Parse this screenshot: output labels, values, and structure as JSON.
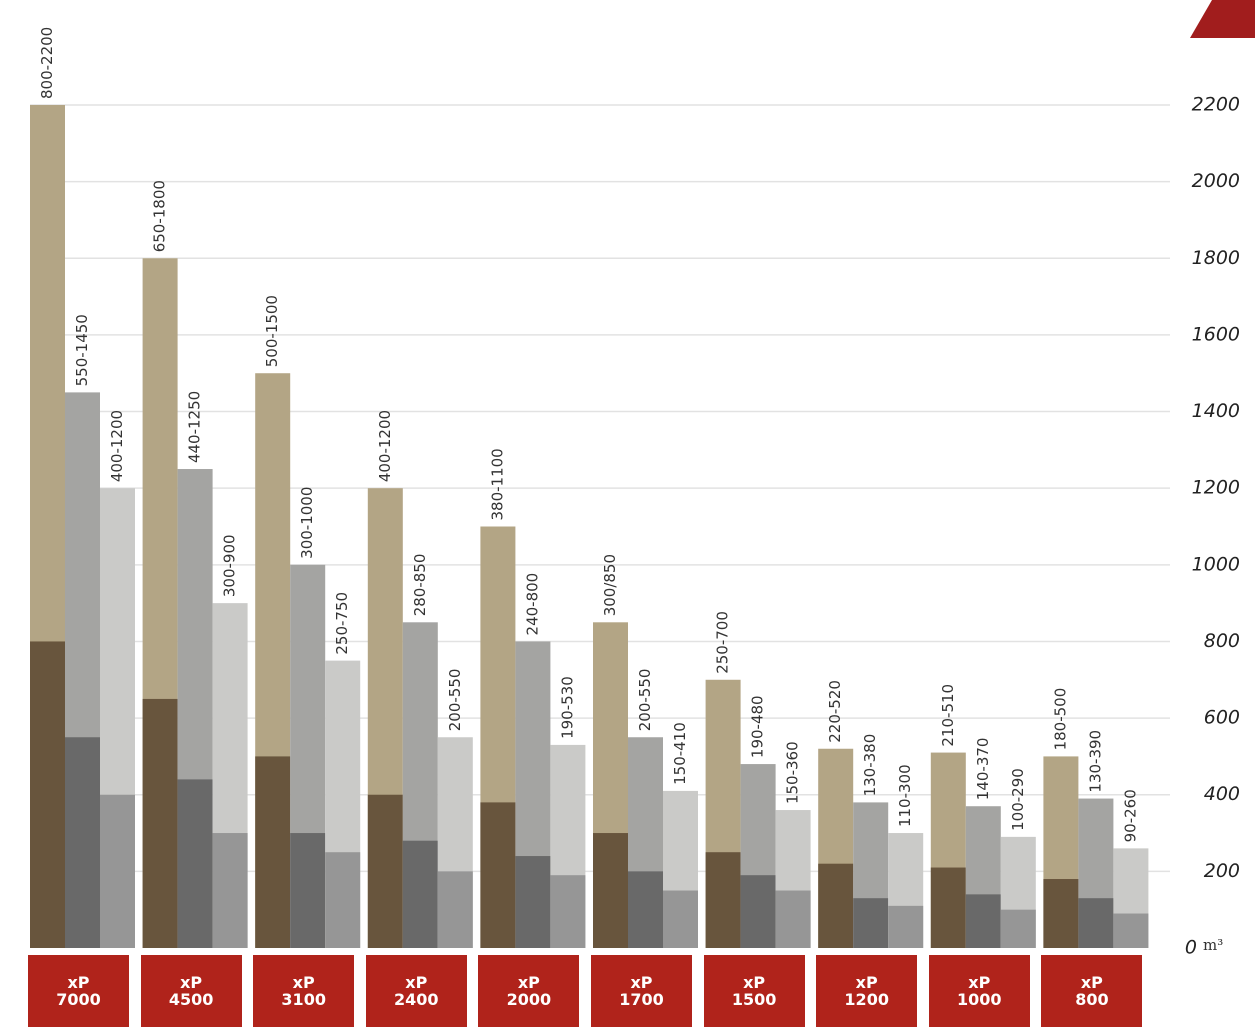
{
  "chart_data": {
    "type": "range_bar",
    "categories": [
      "xP 7000",
      "xP 4500",
      "xP 3100",
      "xP 2400",
      "xP 2000",
      "xP 1700",
      "xP 1500",
      "xP 1200",
      "xP 1000",
      "xP 800"
    ],
    "series": [
      {
        "color": "#b3a585",
        "low_color": "#5b4630",
        "values": [
          2200,
          1800,
          1500,
          1200,
          1100,
          850,
          700,
          520,
          510,
          500
        ],
        "lows": [
          800,
          650,
          500,
          400,
          380,
          300,
          250,
          220,
          210,
          180
        ],
        "value_labels": [
          "800-2200",
          "650-1800",
          "500-1500",
          "400-1200",
          "380-1100",
          "300/850",
          "250-700",
          "220-520",
          "210-510",
          "180-500"
        ]
      },
      {
        "color": "#a4a4a2",
        "low_color": "#5f5f5f",
        "values": [
          1450,
          1250,
          1000,
          850,
          800,
          550,
          480,
          380,
          370,
          390
        ],
        "lows": [
          550,
          440,
          300,
          280,
          240,
          200,
          190,
          130,
          140,
          130
        ],
        "value_labels": [
          "550-1450",
          "440-1250",
          "300-1000",
          "280-850",
          "240-800",
          "200-550",
          "190-480",
          "130-380",
          "140-370",
          "130-390"
        ]
      },
      {
        "color": "#cacac8",
        "low_color": "#8d8d8d",
        "values": [
          1200,
          900,
          750,
          550,
          530,
          410,
          360,
          300,
          290,
          260
        ],
        "lows": [
          400,
          300,
          250,
          200,
          190,
          150,
          150,
          110,
          100,
          90
        ],
        "value_labels": [
          "400-1200",
          "300-900",
          "250-750",
          "200-550",
          "190-530",
          "150-410",
          "150-360",
          "110-300",
          "100-290",
          "90-260"
        ]
      }
    ],
    "unit": "m³",
    "ylim": [
      0,
      2200
    ],
    "yticks": [
      0,
      200,
      400,
      600,
      800,
      1000,
      1200,
      1400,
      1600,
      1800,
      2000,
      2200
    ],
    "grid": true,
    "category_color": "#b0231b"
  }
}
